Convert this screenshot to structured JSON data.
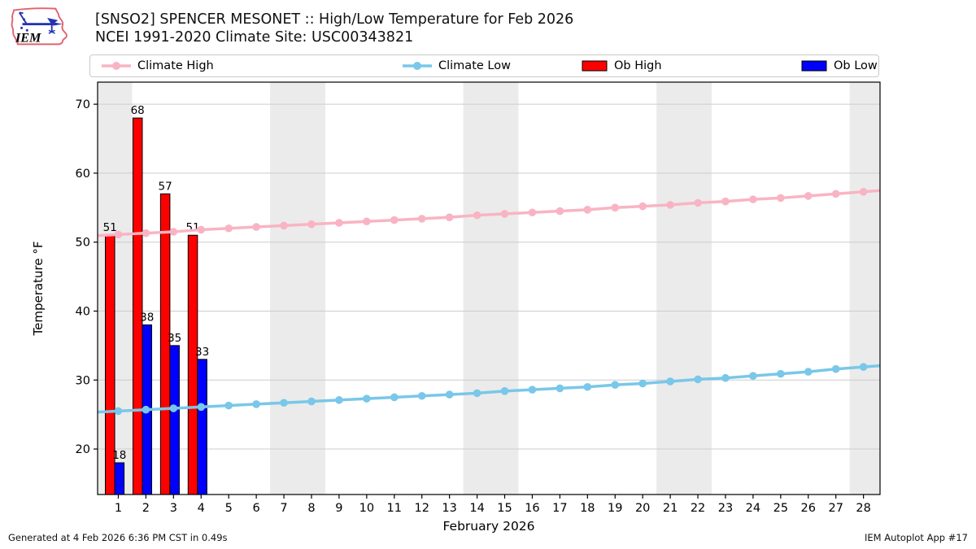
{
  "logo": {
    "text": "IEM"
  },
  "footer": {
    "left": "Generated at 4 Feb 2026 6:36 PM CST in 0.49s",
    "right": "IEM Autoplot App #17"
  },
  "chart_data": {
    "type": "bar",
    "title": "[SNSO2] SPENCER MESONET :: High/Low Temperature for Feb 2026",
    "subtitle": "NCEI 1991-2020 Climate Site: USC00343821",
    "xlabel": "February 2026",
    "ylabel": "Temperature °F",
    "x": [
      1,
      2,
      3,
      4,
      5,
      6,
      7,
      8,
      9,
      10,
      11,
      12,
      13,
      14,
      15,
      16,
      17,
      18,
      19,
      20,
      21,
      22,
      23,
      24,
      25,
      26,
      27,
      28
    ],
    "xlim": [
      0.25,
      28.6
    ],
    "ylim": [
      13.4,
      73.2
    ],
    "yticks": [
      20,
      30,
      40,
      50,
      60,
      70
    ],
    "grid": "horizontal-only",
    "grid_color": "#cccccc",
    "band_color": "#ebebeb",
    "weekend_bands": [
      [
        0.25,
        1.5
      ],
      [
        6.5,
        8.5
      ],
      [
        13.5,
        15.5
      ],
      [
        20.5,
        22.5
      ],
      [
        27.5,
        28.6
      ]
    ],
    "legend_position": "top",
    "series": [
      {
        "name": "Climate High",
        "kind": "line",
        "color": "#f9b4c3",
        "values": [
          51.1,
          51.3,
          51.5,
          51.8,
          52.0,
          52.2,
          52.4,
          52.6,
          52.8,
          53.0,
          53.2,
          53.4,
          53.6,
          53.9,
          54.1,
          54.3,
          54.5,
          54.7,
          55.0,
          55.2,
          55.4,
          55.7,
          55.9,
          56.2,
          56.4,
          56.7,
          57.0,
          57.3
        ]
      },
      {
        "name": "Climate Low",
        "kind": "line",
        "color": "#79c7e9",
        "values": [
          25.5,
          25.7,
          25.9,
          26.1,
          26.3,
          26.5,
          26.7,
          26.9,
          27.1,
          27.3,
          27.5,
          27.7,
          27.9,
          28.1,
          28.4,
          28.6,
          28.8,
          29.0,
          29.3,
          29.5,
          29.8,
          30.1,
          30.3,
          30.6,
          30.9,
          31.2,
          31.6,
          31.9
        ]
      },
      {
        "name": "Ob High",
        "kind": "bar",
        "color": "#ff0000",
        "x": [
          1,
          2,
          3,
          4
        ],
        "values": [
          51,
          68,
          57,
          51
        ]
      },
      {
        "name": "Ob Low",
        "kind": "bar",
        "color": "#0000ff",
        "x": [
          1,
          2,
          3,
          4
        ],
        "values": [
          18,
          38,
          35,
          33
        ]
      }
    ]
  }
}
